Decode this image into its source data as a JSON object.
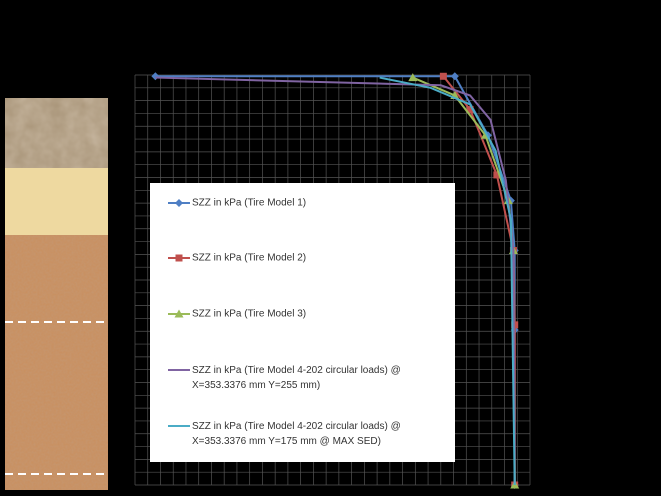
{
  "chart_data": {
    "type": "line",
    "series": [
      {
        "name": "SZZ in kPa (Tire Model 1)",
        "color": "#4f7fc4",
        "marker": "diamond",
        "x": [
          -28.4,
          -4.9,
          -2.3,
          -0.5,
          -0.2,
          -0.2,
          -0.2
        ],
        "values": [
          0.1,
          0.1,
          4.7,
          9.8,
          13.7,
          19.9,
          32
        ]
      },
      {
        "name": "SZZ in kPa (Tire Model 2)",
        "color": "#c0504d",
        "marker": "square",
        "x": [
          -5.8,
          -3.7,
          -1.6,
          -0.3,
          -0.2,
          -0.2
        ],
        "values": [
          0.1,
          2.7,
          7.8,
          13.7,
          19.5,
          32
        ]
      },
      {
        "name": "SZZ in kPa (Tire Model 3)",
        "color": "#9bbb59",
        "marker": "triangle",
        "x": [
          -8.2,
          -4.9,
          -2.5,
          -0.7,
          -0.3,
          -0.2
        ],
        "values": [
          0.2,
          1.6,
          4.7,
          9.8,
          13.7,
          32
        ]
      },
      {
        "name": "SZZ in kPa (Tire Model 4-202 circular loads) @ X=353.3376 mm Y=255 mm)",
        "color": "#8064a2",
        "x": [
          -28.4,
          -6,
          -3.7,
          -2.1,
          -0.9,
          -0.3,
          -0.2
        ],
        "values": [
          0.2,
          0.8,
          1.6,
          3.5,
          8.2,
          13.7,
          32
        ]
      },
      {
        "name": "SZZ in kPa (Tire Model 4-202 circular loads) @ X=353.3376 mm Y=175 mm @ MAX SED)",
        "color": "#4bacc6",
        "x": [
          -10.8,
          -6.8,
          -3.7,
          -1.7,
          -0.5,
          -0.2
        ],
        "values": [
          0.2,
          1,
          2.3,
          5.9,
          11.3,
          32
        ]
      }
    ],
    "xlim": [
      -30,
      1
    ],
    "ylim": [
      0,
      32
    ],
    "y_inverted": true,
    "grid": true,
    "xticks": [
      -30,
      -29,
      -28,
      -27,
      -26,
      -25,
      -24,
      -23,
      -22,
      -21,
      -20,
      -19,
      -18,
      -17,
      -16,
      -15,
      -14,
      -13,
      -12,
      -11,
      -10,
      -9,
      -8,
      -7,
      -6,
      -5,
      -4,
      -3,
      -2,
      -1,
      0,
      1
    ],
    "yticks": [
      0,
      1,
      2,
      3,
      4,
      5,
      6,
      7,
      8,
      9,
      10,
      11,
      12,
      13,
      14,
      15,
      16,
      17,
      18,
      19,
      20,
      21,
      22,
      23,
      24,
      25,
      26,
      27,
      28,
      29,
      30,
      31,
      32
    ]
  }
}
